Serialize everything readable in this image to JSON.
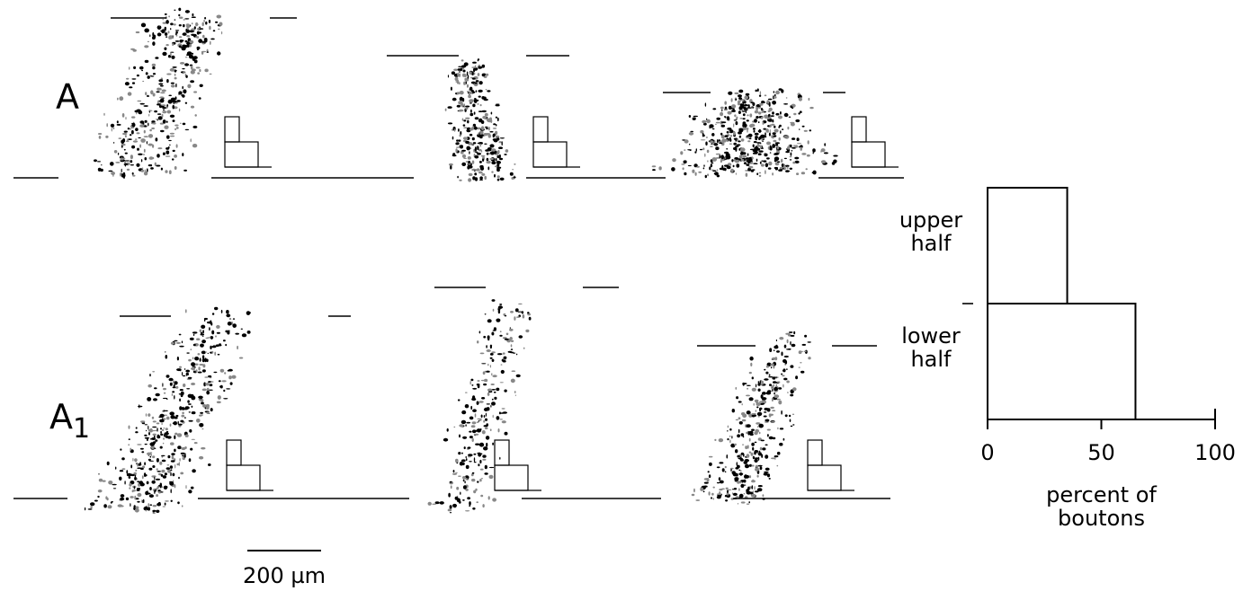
{
  "panel_labels": [
    {
      "letter": "A",
      "subscript": ""
    },
    {
      "letter": "A",
      "subscript": "1"
    }
  ],
  "scale_bar": "200 µm",
  "chart_data": {
    "type": "bar",
    "orientation": "horizontal",
    "categories": [
      "upper half",
      "lower half"
    ],
    "values": [
      35,
      65
    ],
    "color": "#ffffff",
    "xlabel": "percent of boutons",
    "xlim": [
      0,
      100
    ],
    "xticks": [
      0,
      50,
      100
    ]
  }
}
